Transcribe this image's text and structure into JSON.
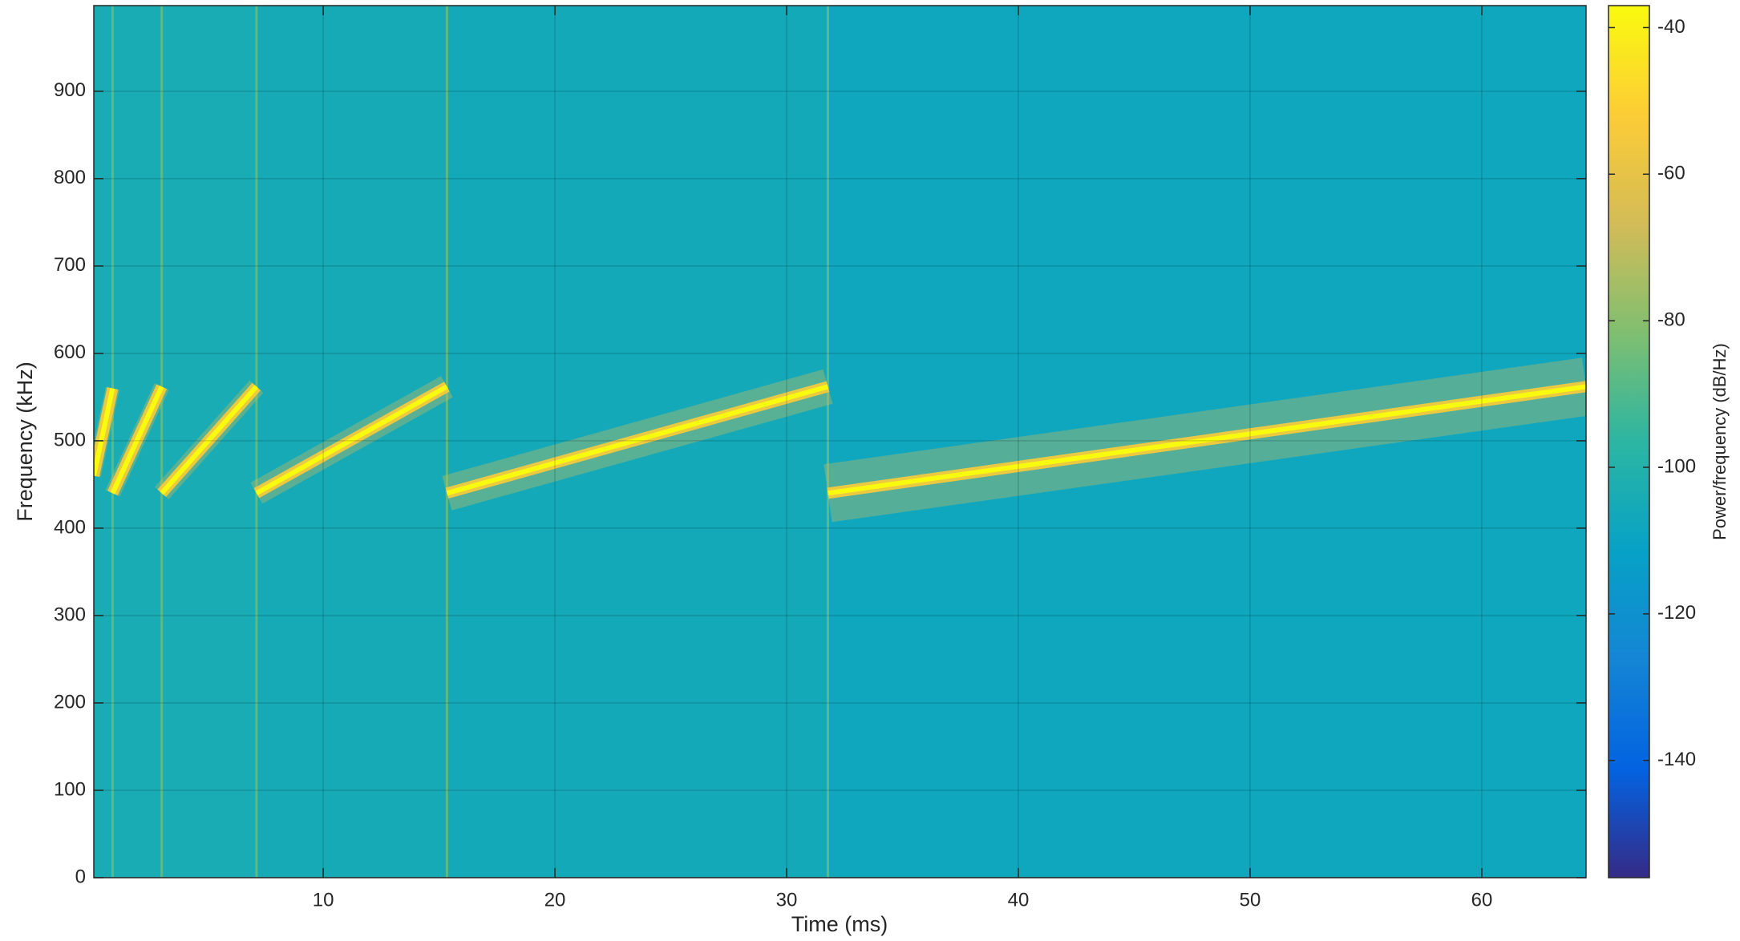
{
  "chart_data": {
    "type": "spectrogram",
    "xlabel": "Time (ms)",
    "ylabel": "Frequency (kHz)",
    "colorbar_label": "Power/frequency (dB/Hz)",
    "colormap": "parula",
    "xlim": [
      0.1,
      64.5
    ],
    "ylim": [
      0,
      998
    ],
    "xticks": [
      10,
      20,
      30,
      40,
      50,
      60
    ],
    "yticks": [
      0,
      100,
      200,
      300,
      400,
      500,
      600,
      700,
      800,
      900
    ],
    "clim": [
      -156,
      -37
    ],
    "cticks": [
      -140,
      -120,
      -100,
      -80,
      -60,
      -40
    ],
    "grid": true,
    "segments": [
      {
        "time": [
          0.1,
          0.91
        ],
        "frequency": [
          460,
          560
        ],
        "floor_power": -104,
        "peak_power": -37,
        "onset_power": -88
      },
      {
        "time": [
          0.91,
          3.03
        ],
        "frequency": [
          440,
          562
        ],
        "floor_power": -104,
        "peak_power": -37,
        "onset_power": -88
      },
      {
        "time": [
          3.03,
          7.12
        ],
        "frequency": [
          440,
          562
        ],
        "floor_power": -104,
        "peak_power": -37,
        "onset_power": -88
      },
      {
        "time": [
          7.12,
          15.34
        ],
        "frequency": [
          440,
          562
        ],
        "floor_power": -105,
        "peak_power": -37,
        "onset_power": -88
      },
      {
        "time": [
          15.34,
          31.78
        ],
        "frequency": [
          440,
          562
        ],
        "floor_power": -106,
        "peak_power": -37,
        "onset_power": -88
      },
      {
        "time": [
          31.78,
          64.5
        ],
        "frequency": [
          440,
          562
        ],
        "floor_power": -108,
        "peak_power": -37,
        "onset_power": -88
      }
    ]
  }
}
